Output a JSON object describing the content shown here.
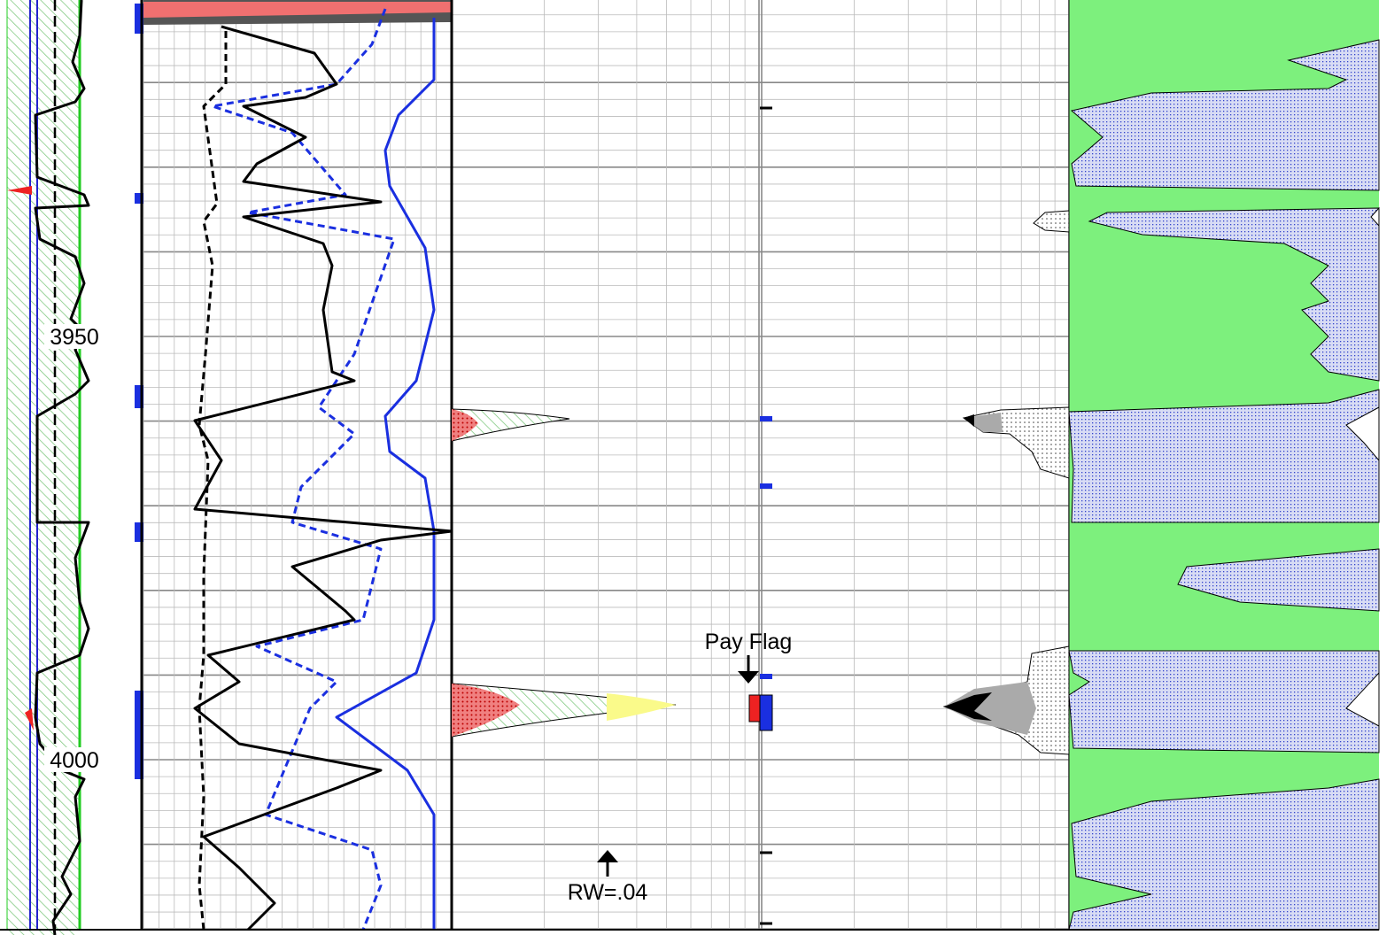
{
  "depth_labels": [
    "3950",
    "4000"
  ],
  "annotations": {
    "pay_flag": "Pay Flag",
    "rw": "RW=.04"
  }
}
